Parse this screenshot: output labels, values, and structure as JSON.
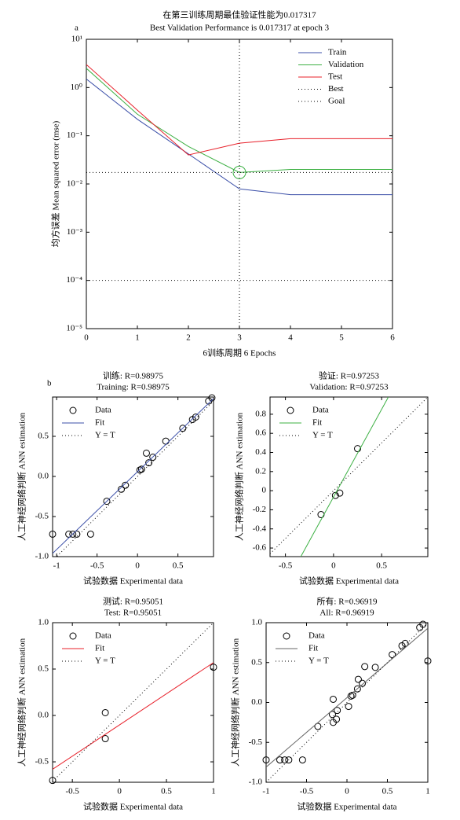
{
  "chart_data": [
    {
      "type": "line",
      "panel_label": "a",
      "title": "在第三训练周期最佳验证性能为0.017317",
      "subtitle": "Best Validation Performance is 0.017317 at epoch 3",
      "x_label": "6训练周期 6 Epochs",
      "y_label": "均方误差 Mean squared error (mse)",
      "log_y": true,
      "legend": "upper right",
      "xlim": [
        0,
        6
      ],
      "xticks": [
        0,
        1,
        2,
        3,
        4,
        5,
        6
      ],
      "ylim": [
        1e-05,
        10
      ],
      "yticks": [
        {
          "value": 10,
          "label": "10¹"
        },
        {
          "value": 1,
          "label": "10⁰"
        },
        {
          "value": 0.1,
          "label": "10⁻¹"
        },
        {
          "value": 0.01,
          "label": "10⁻²"
        },
        {
          "value": 0.001,
          "label": "10⁻³"
        },
        {
          "value": 0.0001,
          "label": "10⁻⁴"
        },
        {
          "value": 1e-05,
          "label": "10⁻⁵"
        }
      ],
      "best_epoch": 3,
      "series": [
        {
          "name": "Train",
          "color": "#3b4fa8",
          "x": [
            0,
            1,
            2,
            3,
            4,
            5,
            6
          ],
          "values": [
            1.5,
            0.22,
            0.042,
            0.0079,
            0.006,
            0.006,
            0.006
          ]
        },
        {
          "name": "Validation",
          "color": "#3cb043",
          "x": [
            0,
            1,
            2,
            3,
            4,
            5,
            6
          ],
          "values": [
            2.5,
            0.28,
            0.06,
            0.017317,
            0.02,
            0.02,
            0.02
          ]
        },
        {
          "name": "Test",
          "color": "#e8202a",
          "x": [
            0,
            1,
            2,
            3,
            4,
            5,
            6
          ],
          "values": [
            3.0,
            0.34,
            0.04,
            0.07,
            0.087,
            0.087,
            0.087
          ]
        },
        {
          "name": "Best",
          "color": "#000000",
          "dash": "dotted",
          "marker_color": "#3cb043",
          "x": [
            0,
            6
          ],
          "values": [
            0.017317,
            0.017317
          ]
        },
        {
          "name": "Goal",
          "color": "#000000",
          "dash": "dotted",
          "x": [
            0,
            6
          ],
          "values": [
            0.0001,
            0.0001
          ]
        }
      ]
    },
    {
      "type": "scatter",
      "panel_label": "b",
      "title": "训练: R=0.98975",
      "subtitle": "Training: R=0.98975",
      "x_label": "试验数据 Experimental data",
      "y_label": "人工神经网络判断 ANN estimation",
      "legend": "upper left",
      "xlim": [
        -1.05,
        0.94
      ],
      "xticks": [
        -1,
        -0.5,
        0,
        0.5
      ],
      "ylim": [
        -1.0,
        0.99
      ],
      "yticks": [
        {
          "value": -1,
          "label": "-1.0"
        },
        -0.5,
        {
          "value": 0,
          "label": "0.0"
        },
        0.5
      ],
      "series": [
        {
          "name": "Data",
          "color": "#000000",
          "marker": "circle",
          "x": [
            -1.05,
            -0.85,
            -0.8,
            -0.75,
            -0.58,
            -0.38,
            -0.2,
            -0.15,
            0.03,
            0.05,
            0.11,
            0.14,
            0.19,
            0.35,
            0.56,
            0.68,
            0.72,
            0.88,
            0.92
          ],
          "values": [
            -0.72,
            -0.72,
            -0.72,
            -0.72,
            -0.72,
            -0.31,
            -0.16,
            -0.11,
            0.08,
            0.09,
            0.29,
            0.17,
            0.24,
            0.44,
            0.6,
            0.71,
            0.74,
            0.94,
            0.98
          ]
        },
        {
          "name": "Fit",
          "color": "#3b4fa8",
          "x": [
            -1.05,
            0.94
          ],
          "values": [
            -0.96,
            0.97
          ]
        },
        {
          "name": "Y = T",
          "color": "#000000",
          "dash": "dotted",
          "x": [
            -1.05,
            0.94
          ],
          "values": [
            -1.05,
            0.94
          ]
        }
      ]
    },
    {
      "type": "scatter",
      "title": "验证: R=0.97253",
      "subtitle": "Validation: R=0.97253",
      "x_label": "试验数据 Experimental data",
      "y_label": "人工神经网络判断 ANN estimation",
      "legend": "upper left",
      "xlim": [
        -0.66,
        0.98
      ],
      "xticks": [
        -0.5,
        0,
        0.5
      ],
      "ylim": [
        -0.69,
        0.98
      ],
      "yticks": [
        -0.6,
        -0.4,
        -0.2,
        0,
        0.2,
        0.4,
        0.6,
        0.8
      ],
      "series": [
        {
          "name": "Data",
          "color": "#000000",
          "marker": "circle",
          "x": [
            -0.13,
            0.02,
            0.065,
            0.25
          ],
          "values": [
            -0.25,
            -0.05,
            -0.025,
            0.44
          ]
        },
        {
          "name": "Fit",
          "color": "#3cb043",
          "x": [
            -0.34,
            0.57
          ],
          "values": [
            -0.69,
            0.98
          ]
        },
        {
          "name": "Y = T",
          "color": "#000000",
          "dash": "dotted",
          "x": [
            -0.66,
            0.98
          ],
          "values": [
            -0.66,
            0.98
          ]
        }
      ]
    },
    {
      "type": "scatter",
      "title": "测试: R=0.95051",
      "subtitle": "Test: R=0.95051",
      "x_label": "试验数据 Experimental data",
      "y_label": "人工神经网络判断 ANN estimation",
      "legend": "upper left",
      "xlim": [
        -0.71,
        1.0
      ],
      "xticks": [
        -0.5,
        0,
        0.5,
        1
      ],
      "ylim": [
        -0.72,
        1.0
      ],
      "yticks": [
        -0.5,
        {
          "value": 0,
          "label": "0.0"
        },
        0.5,
        {
          "value": 1,
          "label": "1.0"
        }
      ],
      "series": [
        {
          "name": "Data",
          "color": "#000000",
          "marker": "circle",
          "x": [
            -0.71,
            -0.15,
            -0.15,
            1.0
          ],
          "values": [
            -0.7,
            0.03,
            -0.25,
            0.52
          ]
        },
        {
          "name": "Fit",
          "color": "#e8202a",
          "x": [
            -0.71,
            1.0
          ],
          "values": [
            -0.58,
            0.57
          ]
        },
        {
          "name": "Y = T",
          "color": "#000000",
          "dash": "dotted",
          "x": [
            -0.71,
            1.0
          ],
          "values": [
            -0.71,
            1.0
          ]
        }
      ]
    },
    {
      "type": "scatter",
      "title": "所有: R=0.96919",
      "subtitle": "All: R=0.96919",
      "x_label": "试验数据 Experimental data",
      "y_label": "人工神经网络判断 ANN estimation",
      "legend": "upper left",
      "xlim": [
        -1.0,
        1.0
      ],
      "xticks": [
        -1,
        -0.5,
        0,
        0.5,
        1
      ],
      "ylim": [
        -1.0,
        1.0
      ],
      "yticks": [
        {
          "value": -1,
          "label": "-1.0"
        },
        -0.5,
        {
          "value": 0,
          "label": "0.0"
        },
        0.5,
        {
          "value": 1,
          "label": "1.0"
        }
      ],
      "series": [
        {
          "name": "Data",
          "color": "#000000",
          "marker": "circle",
          "x": [
            -1.0,
            -0.83,
            -0.77,
            -0.72,
            -0.55,
            -0.36,
            -0.18,
            -0.17,
            -0.17,
            -0.13,
            -0.12,
            0.02,
            0.05,
            0.07,
            0.13,
            0.14,
            0.19,
            0.22,
            0.35,
            0.56,
            0.68,
            0.72,
            0.9,
            0.94,
            1.0
          ],
          "values": [
            -0.72,
            -0.72,
            -0.72,
            -0.72,
            -0.72,
            -0.3,
            -0.15,
            0.04,
            -0.25,
            -0.21,
            -0.1,
            -0.05,
            0.08,
            0.09,
            0.17,
            0.29,
            0.24,
            0.45,
            0.44,
            0.6,
            0.71,
            0.74,
            0.94,
            0.98,
            0.52
          ]
        },
        {
          "name": "Fit",
          "color": "#666666",
          "x": [
            -1.0,
            1.0
          ],
          "values": [
            -0.81,
            0.93
          ]
        },
        {
          "name": "Y = T",
          "color": "#000000",
          "dash": "dotted",
          "x": [
            -1.0,
            1.0
          ],
          "values": [
            -1.0,
            1.0
          ]
        }
      ]
    }
  ]
}
